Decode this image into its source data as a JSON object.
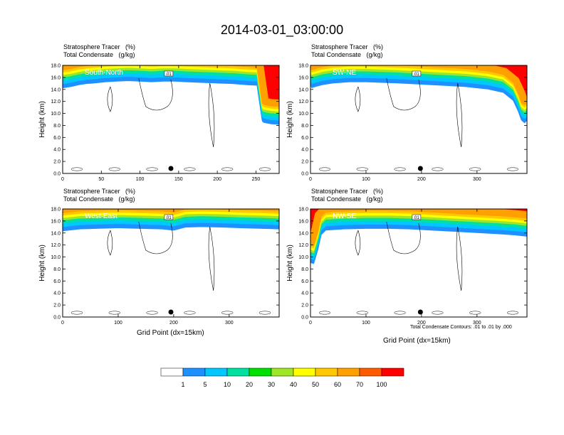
{
  "figure": {
    "title": "2014-03-01_03:00:00",
    "footnote": "Total Condensate Contours: .01 to .01 by .000"
  },
  "chart_data": [
    {
      "type": "heatmap",
      "label": "South-North",
      "header": [
        "Stratosphere Tracer   (%)",
        "Total Condensate   (g/kg)"
      ],
      "ylabel": "Height (km)",
      "xlabel": "",
      "ylim": [
        0,
        18
      ],
      "xlim": [
        0,
        280
      ],
      "xticks": [
        0,
        50,
        100,
        150,
        200,
        250
      ],
      "yticks": [
        "0.0",
        "2.0",
        "4.0",
        "6.0",
        "8.0",
        "10.0",
        "12.0",
        "14.0",
        "16.0",
        "18.0"
      ],
      "contour_label": ".01",
      "marker_x": 140,
      "tropopause_km": [
        [
          0,
          14.8
        ],
        [
          10,
          15.0
        ],
        [
          20,
          15.3
        ],
        [
          30,
          15.5
        ],
        [
          40,
          15.6
        ],
        [
          55,
          15.8
        ],
        [
          70,
          15.9
        ],
        [
          85,
          16.0
        ],
        [
          100,
          15.9
        ],
        [
          115,
          15.8
        ],
        [
          130,
          15.9
        ],
        [
          145,
          15.9
        ],
        [
          160,
          15.8
        ],
        [
          180,
          15.7
        ],
        [
          200,
          15.6
        ],
        [
          220,
          15.5
        ],
        [
          240,
          15.3
        ],
        [
          255,
          15.2
        ],
        [
          262,
          9.0
        ],
        [
          270,
          8.8
        ],
        [
          280,
          8.7
        ]
      ]
    },
    {
      "type": "heatmap",
      "label": "SW-NE",
      "header": [
        "Stratosphere Tracer   (%)",
        "Total Condensate   (g/kg)"
      ],
      "ylabel": "Height (km)",
      "xlabel": "",
      "ylim": [
        0,
        18
      ],
      "xlim": [
        0,
        390
      ],
      "xticks": [
        0,
        100,
        200,
        300
      ],
      "yticks": [
        "0.0",
        "2.0",
        "4.0",
        "6.0",
        "8.0",
        "10.0",
        "12.0",
        "14.0",
        "16.0",
        "18.0"
      ],
      "contour_label": ".01",
      "marker_x": 198,
      "tropopause_km": [
        [
          0,
          14.8
        ],
        [
          20,
          15.3
        ],
        [
          40,
          15.6
        ],
        [
          70,
          15.8
        ],
        [
          100,
          15.8
        ],
        [
          130,
          15.7
        ],
        [
          160,
          15.6
        ],
        [
          200,
          15.4
        ],
        [
          240,
          15.2
        ],
        [
          280,
          15.0
        ],
        [
          320,
          14.6
        ],
        [
          350,
          14.0
        ],
        [
          370,
          12.5
        ],
        [
          380,
          10.5
        ],
        [
          385,
          9.2
        ],
        [
          390,
          8.8
        ]
      ]
    },
    {
      "type": "heatmap",
      "label": "West-East",
      "header": [
        "Stratosphere Tracer   (%)",
        "Total Condensate   (g/kg)"
      ],
      "ylabel": "Height (km)",
      "xlabel": "Grid Point (dx=15km)",
      "ylim": [
        0,
        18
      ],
      "xlim": [
        0,
        390
      ],
      "xticks": [
        0,
        100,
        200,
        300
      ],
      "yticks": [
        "0.0",
        "2.0",
        "4.0",
        "6.0",
        "8.0",
        "10.0",
        "12.0",
        "14.0",
        "16.0",
        "18.0"
      ],
      "contour_label": ".01",
      "marker_x": 195,
      "tropopause_km": [
        [
          0,
          14.9
        ],
        [
          30,
          15.2
        ],
        [
          60,
          15.3
        ],
        [
          100,
          15.4
        ],
        [
          140,
          15.3
        ],
        [
          180,
          15.2
        ],
        [
          200,
          15.0
        ],
        [
          220,
          15.5
        ],
        [
          250,
          15.6
        ],
        [
          290,
          15.5
        ],
        [
          320,
          15.4
        ],
        [
          360,
          15.3
        ],
        [
          390,
          15.2
        ]
      ]
    },
    {
      "type": "heatmap",
      "label": "NW-SE",
      "header": [
        "Stratosphere Tracer   (%)",
        "Total Condensate   (g/kg)"
      ],
      "ylabel": "Height (km)",
      "xlabel": "Grid Point (dx=15km)",
      "ylim": [
        0,
        18
      ],
      "xlim": [
        0,
        390
      ],
      "xticks": [
        0,
        100,
        200,
        300
      ],
      "yticks": [
        "0.0",
        "2.0",
        "4.0",
        "6.0",
        "8.0",
        "10.0",
        "12.0",
        "14.0",
        "16.0",
        "18.0"
      ],
      "contour_label": ".01",
      "marker_x": 198,
      "tropopause_km": [
        [
          0,
          9.0
        ],
        [
          8,
          11.5
        ],
        [
          14,
          14.0
        ],
        [
          25,
          15.0
        ],
        [
          60,
          15.2
        ],
        [
          100,
          15.3
        ],
        [
          140,
          15.3
        ],
        [
          180,
          15.2
        ],
        [
          220,
          15.0
        ],
        [
          260,
          14.8
        ],
        [
          300,
          14.6
        ],
        [
          340,
          14.4
        ],
        [
          370,
          14.2
        ],
        [
          390,
          14.0
        ]
      ]
    }
  ],
  "colorbar": {
    "labels": [
      "1",
      "5",
      "10",
      "20",
      "30",
      "40",
      "50",
      "60",
      "70",
      "100"
    ],
    "colors": [
      "#ffffff",
      "#1e90ff",
      "#00c8ff",
      "#00e0a0",
      "#00e000",
      "#a0e628",
      "#ffff00",
      "#ffc800",
      "#ffa000",
      "#ff5a00",
      "#ff0000"
    ]
  }
}
